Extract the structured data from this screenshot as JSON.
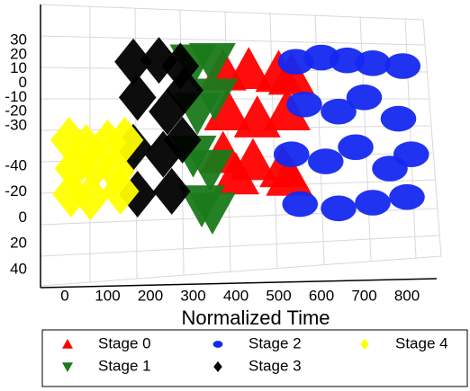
{
  "chart_data": {
    "type": "scatter3d",
    "xlabel": "Normalized Time",
    "xlim": [
      0,
      800
    ],
    "xticks": [
      0,
      100,
      200,
      300,
      400,
      500,
      600,
      700,
      800
    ],
    "zlim": [
      -30,
      30
    ],
    "zticks": [
      30,
      20,
      10,
      0,
      -10,
      -20,
      -30
    ],
    "ylim": [
      -40,
      40
    ],
    "yticks": [
      -40,
      -20,
      0,
      20,
      40
    ],
    "series": [
      {
        "name": "Stage 0",
        "color": "#ff0000",
        "marker": "triangle-up",
        "x": [
          370,
          430,
          500,
          530,
          380,
          450,
          520,
          370,
          440,
          510,
          400,
          525
        ],
        "values": [
          8,
          9,
          7,
          5,
          -20,
          -25,
          -20,
          -50,
          -55,
          -60,
          -65,
          -66
        ]
      },
      {
        "name": "Stage 1",
        "color": "#1a7a1a",
        "marker": "triangle-down",
        "x": [
          300,
          345,
          310,
          350,
          300,
          340,
          320,
          345
        ],
        "values": [
          14,
          15,
          -20,
          -10,
          -50,
          -60,
          -85,
          -90
        ]
      },
      {
        "name": "Stage 2",
        "color": "#1428f0",
        "marker": "ellipse",
        "x": [
          540,
          600,
          660,
          720,
          790,
          560,
          640,
          700,
          780,
          530,
          610,
          680,
          760,
          810,
          550,
          640,
          720,
          800
        ],
        "values": [
          15,
          18,
          16,
          14,
          12,
          -15,
          -20,
          -10,
          -25,
          -50,
          -55,
          -45,
          -60,
          -50,
          -85,
          -88,
          -84,
          -80
        ]
      },
      {
        "name": "Stage 3",
        "color": "#000000",
        "marker": "diamond",
        "x": [
          160,
          220,
          270,
          170,
          240,
          280,
          160,
          230,
          275,
          170,
          250
        ],
        "values": [
          15,
          16,
          12,
          -10,
          -20,
          -5,
          -45,
          -50,
          -40,
          -78,
          -76
        ]
      },
      {
        "name": "Stage 4",
        "color": "#ffff00",
        "marker": "diamond",
        "x": [
          10,
          50,
          100,
          140,
          20,
          70,
          120,
          15,
          60,
          130
        ],
        "values": [
          -40,
          -45,
          -42,
          -40,
          -60,
          -58,
          -62,
          -78,
          -80,
          -76
        ]
      }
    ]
  }
}
